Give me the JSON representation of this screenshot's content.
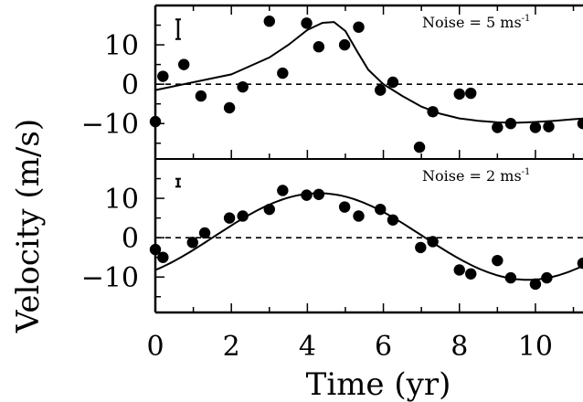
{
  "chart_data": {
    "type": "scatter",
    "xlabel": "Time (yr)",
    "ylabel": "Velocity (m/s)",
    "xlim": [
      0,
      11.3
    ],
    "x_ticks": [
      "0",
      "2",
      "4",
      "6",
      "8",
      "10"
    ],
    "y_tick_labels": [
      "10",
      "0",
      "−10"
    ],
    "grid": false,
    "panels": [
      {
        "name": "top",
        "ylim": [
          -19,
          20
        ],
        "noise_label": "Noise = 5 ms",
        "noise_label_sup": "-1",
        "error_bar_half_height": 2.5,
        "points": [
          [
            0,
            -9.5
          ],
          [
            0.2,
            2
          ],
          [
            0.75,
            5
          ],
          [
            1.2,
            -3
          ],
          [
            1.95,
            -6
          ],
          [
            2.3,
            -0.7
          ],
          [
            3.0,
            16
          ],
          [
            3.35,
            2.8
          ],
          [
            3.98,
            15.5
          ],
          [
            4.3,
            9.5
          ],
          [
            4.98,
            10
          ],
          [
            5.35,
            14.5
          ],
          [
            5.92,
            -1.5
          ],
          [
            6.25,
            0.5
          ],
          [
            6.95,
            -16
          ],
          [
            7.3,
            -7
          ],
          [
            8.0,
            -2.5
          ],
          [
            8.3,
            -2.3
          ],
          [
            9.0,
            -11
          ],
          [
            9.35,
            -10
          ],
          [
            10.0,
            -11
          ],
          [
            10.35,
            -10.8
          ],
          [
            11.25,
            -10
          ]
        ],
        "curve": [
          [
            0,
            -1.5
          ],
          [
            1,
            0.5
          ],
          [
            2,
            2.5
          ],
          [
            3,
            6.8
          ],
          [
            3.5,
            10
          ],
          [
            4,
            13.8
          ],
          [
            4.4,
            15.6
          ],
          [
            4.7,
            15.8
          ],
          [
            5.0,
            13.5
          ],
          [
            5.3,
            8.5
          ],
          [
            5.6,
            3.7
          ],
          [
            6.0,
            0
          ],
          [
            6.3,
            -1.8
          ],
          [
            6.5,
            -3
          ],
          [
            7.0,
            -5.7
          ],
          [
            7.5,
            -7.5
          ],
          [
            8.0,
            -8.7
          ],
          [
            8.5,
            -9.3
          ],
          [
            9.0,
            -9.7
          ],
          [
            9.5,
            -9.8
          ],
          [
            10.0,
            -9.6
          ],
          [
            10.5,
            -9.3
          ],
          [
            11.0,
            -8.9
          ],
          [
            11.3,
            -8.7
          ]
        ]
      },
      {
        "name": "bottom",
        "ylim": [
          -19,
          20
        ],
        "noise_label": "Noise = 2 ms",
        "noise_label_sup": "-1",
        "error_bar_half_height": 1,
        "points": [
          [
            0,
            -3
          ],
          [
            0.2,
            -5
          ],
          [
            0.98,
            -1.2
          ],
          [
            1.3,
            1.2
          ],
          [
            1.95,
            5
          ],
          [
            2.3,
            5.5
          ],
          [
            3.0,
            7.2
          ],
          [
            3.35,
            12
          ],
          [
            3.98,
            10.8
          ],
          [
            4.3,
            11
          ],
          [
            4.98,
            7.8
          ],
          [
            5.35,
            5.5
          ],
          [
            5.92,
            7.2
          ],
          [
            6.25,
            4.5
          ],
          [
            6.98,
            -2.5
          ],
          [
            7.3,
            -1
          ],
          [
            8.0,
            -8.2
          ],
          [
            8.3,
            -9.2
          ],
          [
            9.0,
            -5.8
          ],
          [
            9.35,
            -10.2
          ],
          [
            10.0,
            -11.8
          ],
          [
            10.3,
            -10.2
          ],
          [
            11.25,
            -6.5
          ]
        ],
        "curve_model": {
          "offset": 0.3,
          "amplitude": 11,
          "period_yr": 11,
          "peak_at_yr": 4.3
        }
      }
    ]
  }
}
